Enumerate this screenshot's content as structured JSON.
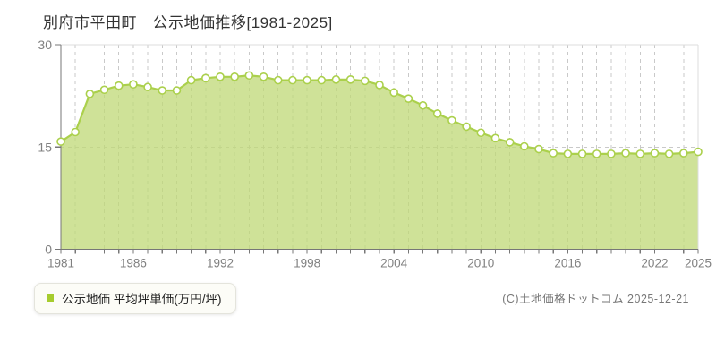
{
  "title": "別府市平田町　公示地価推移[1981-2025]",
  "legend": {
    "label": "公示地価 平均坪単価(万円/坪)",
    "marker_color": "#a6cc2e"
  },
  "copyright": "(C)土地価格ドットコム 2025-12-21",
  "colors": {
    "line": "#abd04c",
    "fill": "rgba(191,216,118,0.75)",
    "marker_fill": "#ffffff",
    "grid": "#c9c9c9",
    "border": "#dddddd",
    "axis": "#777777",
    "tick_label": "#808080",
    "title_text": "#333333"
  },
  "chart_data": {
    "type": "area",
    "title": "別府市平田町 公示地価推移[1981-2025]",
    "xlabel": "",
    "ylabel": "公示地価 平均坪単価(万円/坪)",
    "ylim": [
      0,
      30
    ],
    "yticks": [
      0,
      15,
      30
    ],
    "xtick_labels": [
      1981,
      1986,
      1992,
      1998,
      2004,
      2010,
      2016,
      2022,
      2025
    ],
    "grid": "dashed-vertical-every-year-plus-horizontal-midline",
    "legend_position": "bottom-left",
    "x": [
      1981,
      1982,
      1983,
      1984,
      1985,
      1986,
      1987,
      1988,
      1989,
      1990,
      1991,
      1992,
      1993,
      1994,
      1995,
      1996,
      1997,
      1998,
      1999,
      2000,
      2001,
      2002,
      2003,
      2004,
      2005,
      2006,
      2007,
      2008,
      2009,
      2010,
      2011,
      2012,
      2013,
      2014,
      2015,
      2016,
      2017,
      2018,
      2019,
      2020,
      2021,
      2022,
      2023,
      2024,
      2025
    ],
    "values": [
      15.8,
      17.2,
      22.8,
      23.4,
      24.0,
      24.2,
      23.8,
      23.3,
      23.3,
      24.8,
      25.1,
      25.3,
      25.3,
      25.5,
      25.3,
      24.8,
      24.8,
      24.8,
      24.8,
      24.9,
      24.9,
      24.7,
      24.1,
      23.0,
      22.1,
      21.1,
      19.9,
      18.9,
      18.0,
      17.1,
      16.3,
      15.7,
      15.1,
      14.7,
      14.1,
      14.0,
      14.0,
      14.0,
      14.0,
      14.1,
      14.0,
      14.1,
      14.0,
      14.1,
      14.3
    ]
  }
}
